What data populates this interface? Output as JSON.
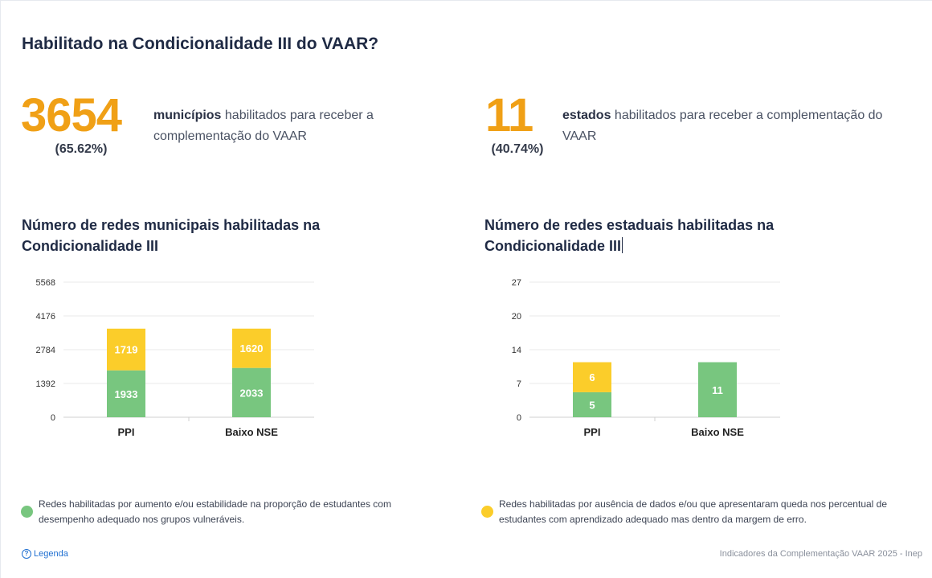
{
  "title": "Habilitado na Condicionalidade III do VAAR?",
  "kpis": {
    "municipal": {
      "number": "3654",
      "percent": "(65.62%)",
      "bold_word": "municípios",
      "rest_text": " habilitados para receber a complementação do VAAR"
    },
    "state": {
      "number": "11",
      "percent": "(40.74%)",
      "bold_word": "estados",
      "rest_text": " habilitados para receber a complementação do VAAR"
    }
  },
  "colors": {
    "green": "#78c67f",
    "yellow": "#fbcd2a",
    "accent": "#f0a016",
    "grid": "#e8e8e8"
  },
  "chart_data": [
    {
      "type": "bar",
      "stacked": true,
      "title": "Número de redes municipais habilitadas na Condicionalidade III",
      "categories": [
        "PPI",
        "Baixo NSE"
      ],
      "series": [
        {
          "name": "",
          "color": "#78c67f",
          "values": [
            1933,
            2033
          ]
        },
        {
          "name": "",
          "color": "#fbcd2a",
          "values": [
            1719,
            1620
          ]
        }
      ],
      "yticks": [
        "0",
        "1392",
        "2784",
        "4176",
        "5568"
      ],
      "ylim": [
        0,
        5568
      ],
      "grid": true
    },
    {
      "type": "bar",
      "stacked": true,
      "title": "Número de redes estaduais habilitadas na Condicionalidade III",
      "categories": [
        "PPI",
        "Baixo NSE"
      ],
      "series": [
        {
          "name": "",
          "color": "#78c67f",
          "values": [
            5,
            11
          ]
        },
        {
          "name": "",
          "color": "#fbcd2a",
          "values": [
            6,
            0
          ]
        }
      ],
      "yticks": [
        "0",
        "7",
        "14",
        "20",
        "27"
      ],
      "ylim": [
        0,
        27
      ],
      "grid": true
    }
  ],
  "legend": {
    "green": "Redes habilitadas por aumento e/ou estabilidade na proporção de estudantes com desempenho adequado nos grupos vulneráveis.",
    "yellow": "Redes habilitadas por ausência de dados e/ou que apresentaram queda nos percentual de estudantes com aprendizado adequado mas dentro da margem de erro."
  },
  "help_link": "Legenda",
  "help_icon": "question-circle-icon",
  "footer": "Indicadores da Complementação VAAR 2025 - Inep"
}
